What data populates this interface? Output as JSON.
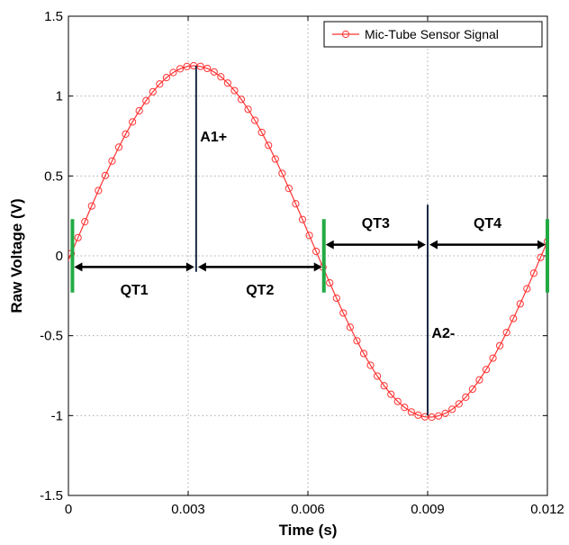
{
  "chart_data": {
    "type": "line",
    "title": "",
    "xlabel": "Time (s)",
    "ylabel": "Raw Voltage (V)",
    "xlim": [
      0,
      0.012
    ],
    "ylim": [
      -1.5,
      1.5
    ],
    "x_ticks": [
      0,
      0.003,
      0.006,
      0.009,
      0.012
    ],
    "x_tick_labels": [
      "0",
      "0.003",
      "0.006",
      "0.009",
      "0.012"
    ],
    "y_ticks": [
      1.5,
      1,
      0.5,
      0,
      -0.5,
      -1,
      -1.5
    ],
    "y_tick_labels": [
      "1.5",
      "1",
      "0.5",
      "0",
      "-0.5",
      "-1",
      "-1.5"
    ],
    "grid": true,
    "legend_position": "top-right",
    "series": [
      {
        "name": "Mic-Tube Sensor Signal",
        "color": "#ff3333",
        "marker": "circle",
        "waveform": {
          "shape": "sine",
          "amplitude": 1.1,
          "offset": 0.09,
          "phase_zero_time": 0.0002,
          "period": 0.0118,
          "x_start": -0.0001,
          "x_end": 0.012,
          "num_points": 72
        }
      }
    ],
    "annotations": {
      "green_markers": [
        0.0001,
        0.0064,
        0.012
      ],
      "green_color": "#22aa44",
      "vertical_lines": [
        {
          "label": "A1+",
          "x": 0.0032,
          "y_from": -0.1,
          "y_to": 1.19,
          "label_x": 0.0033,
          "label_y": 0.75
        },
        {
          "label": "A2-",
          "x": 0.009,
          "y_from": -1.0,
          "y_to": 0.32,
          "label_x": 0.0091,
          "label_y": -0.48
        }
      ],
      "arrows": [
        {
          "label": "QT1",
          "x_from": 0.0001,
          "x_to": 0.0032,
          "y": -0.07,
          "label_y": -0.21
        },
        {
          "label": "QT2",
          "x_from": 0.0032,
          "x_to": 0.0064,
          "y": -0.07,
          "label_y": -0.21
        },
        {
          "label": "QT3",
          "x_from": 0.0064,
          "x_to": 0.009,
          "y": 0.07,
          "label_y": 0.21
        },
        {
          "label": "QT4",
          "x_from": 0.009,
          "x_to": 0.012,
          "y": 0.07,
          "label_y": 0.21
        }
      ],
      "line_color": "#1a2a44"
    }
  }
}
